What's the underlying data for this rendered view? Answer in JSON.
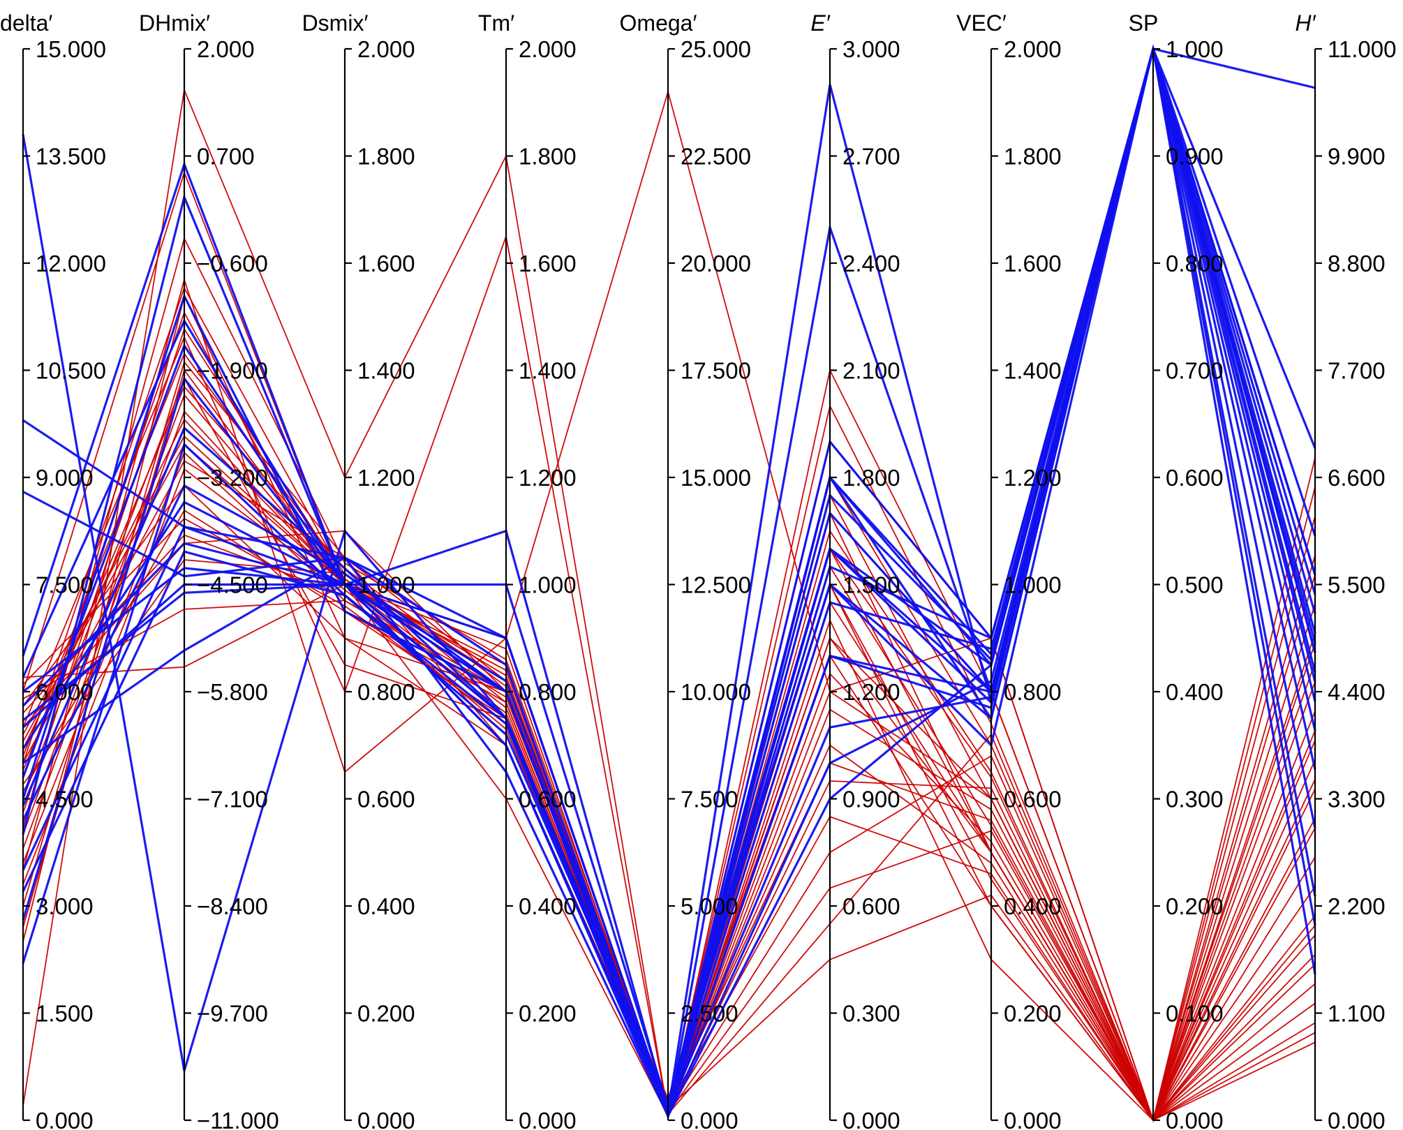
{
  "chart_data": {
    "type": "parallel-coordinates",
    "colors": {
      "red": "#cc0000",
      "blue": "#1010ee"
    },
    "axes": [
      {
        "label": "delta′",
        "italic": false,
        "min": 0,
        "max": 15,
        "ticks": [
          "15.000",
          "13.500",
          "12.000",
          "10.500",
          "9.000",
          "7.500",
          "6.000",
          "4.500",
          "3.000",
          "1.500",
          "0.000"
        ]
      },
      {
        "label": "DHmix′",
        "italic": false,
        "min": -11,
        "max": 2,
        "ticks": [
          "2.000",
          "0.700",
          "−0.600",
          "−1.900",
          "−3.200",
          "−4.500",
          "−5.800",
          "−7.100",
          "−8.400",
          "−9.700",
          "−11.000"
        ]
      },
      {
        "label": "Dsmix′",
        "italic": false,
        "min": 0,
        "max": 2,
        "ticks": [
          "2.000",
          "1.800",
          "1.600",
          "1.400",
          "1.200",
          "1.000",
          "0.800",
          "0.600",
          "0.400",
          "0.200",
          "0.000"
        ]
      },
      {
        "label": "Tm′",
        "italic": false,
        "min": 0,
        "max": 2,
        "ticks": [
          "2.000",
          "1.800",
          "1.600",
          "1.400",
          "1.200",
          "1.000",
          "0.800",
          "0.600",
          "0.400",
          "0.200",
          "0.000"
        ]
      },
      {
        "label": "Omega′",
        "italic": false,
        "min": 0,
        "max": 25,
        "ticks": [
          "25.000",
          "22.500",
          "20.000",
          "17.500",
          "15.000",
          "12.500",
          "10.000",
          "7.500",
          "5.000",
          "2.500",
          "0.000"
        ]
      },
      {
        "label": "E′",
        "italic": true,
        "min": 0,
        "max": 3,
        "ticks": [
          "3.000",
          "2.700",
          "2.400",
          "2.100",
          "1.800",
          "1.500",
          "1.200",
          "0.900",
          "0.600",
          "0.300",
          "0.000"
        ]
      },
      {
        "label": "VEC′",
        "italic": false,
        "min": 0,
        "max": 2,
        "ticks": [
          "2.000",
          "1.800",
          "1.600",
          "1.400",
          "1.200",
          "1.000",
          "0.800",
          "0.600",
          "0.400",
          "0.200",
          "0.000"
        ]
      },
      {
        "label": "SP",
        "italic": false,
        "min": 0,
        "max": 1,
        "ticks": [
          "1.000",
          "0.900",
          "0.800",
          "0.700",
          "0.600",
          "0.500",
          "0.400",
          "0.300",
          "0.200",
          "0.100",
          "0.000"
        ]
      },
      {
        "label": "H′",
        "italic": true,
        "min": 0,
        "max": 11,
        "ticks": [
          "11.000",
          "9.900",
          "8.800",
          "7.700",
          "6.600",
          "5.500",
          "4.400",
          "3.300",
          "2.200",
          "1.100",
          "0.000"
        ]
      }
    ],
    "series": [
      {
        "color": "blue",
        "lines": [
          [
            13.8,
            -10.4,
            1.1,
            0.75,
            0.1,
            1.6,
            0.85,
            1.0,
            10.6
          ],
          [
            9.8,
            -3.8,
            1.0,
            0.8,
            0.2,
            1.9,
            0.9,
            1.0,
            6.9
          ],
          [
            8.8,
            -4.4,
            1.05,
            0.85,
            0.1,
            2.5,
            0.8,
            1.0,
            5.6
          ],
          [
            6.0,
            -4.3,
            1.0,
            0.7,
            0.2,
            2.9,
            0.78,
            1.0,
            4.8
          ],
          [
            5.5,
            -4.5,
            1.0,
            0.75,
            0.3,
            1.8,
            0.85,
            1.0,
            5.2
          ],
          [
            5.0,
            -5.3,
            1.05,
            0.65,
            0.1,
            1.8,
            0.87,
            1.0,
            4.6
          ],
          [
            4.5,
            -1.0,
            0.95,
            0.8,
            0.1,
            1.8,
            0.75,
            1.0,
            4.3
          ],
          [
            4.8,
            -1.6,
            1.0,
            0.75,
            0.4,
            1.6,
            0.78,
            1.0,
            4.5
          ],
          [
            3.5,
            -3.8,
            1.05,
            0.9,
            0.2,
            1.55,
            0.9,
            1.0,
            3.0
          ],
          [
            2.8,
            -2.0,
            1.0,
            0.8,
            0.1,
            1.3,
            0.8,
            1.0,
            4.8
          ],
          [
            6.5,
            0.6,
            1.0,
            0.8,
            0.3,
            1.5,
            0.75,
            1.0,
            5.0
          ],
          [
            4.0,
            0.2,
            1.0,
            0.7,
            0.1,
            1.0,
            0.82,
            1.0,
            1.5
          ],
          [
            6.2,
            -1.3,
            1.0,
            1.1,
            0.2,
            1.1,
            0.79,
            1.0,
            5.6
          ],
          [
            5.2,
            -3.5,
            1.0,
            1.0,
            0.3,
            1.6,
            0.8,
            1.0,
            5.4
          ],
          [
            4.4,
            -2.6,
            1.03,
            0.75,
            0.1,
            0.9,
            0.85,
            1.0,
            2.3
          ],
          [
            3.2,
            -4.1,
            0.98,
            0.72,
            0.4,
            1.5,
            0.7,
            1.0,
            2.0
          ],
          [
            5.8,
            -4.0,
            1.0,
            0.9,
            0.2,
            1.7,
            0.8,
            1.0,
            6.0
          ],
          [
            4.2,
            -3.3,
            1.02,
            0.8,
            0.1,
            1.3,
            0.77,
            1.0,
            4.0
          ],
          [
            5.6,
            -4.6,
            1.0,
            0.82,
            0.25,
            1.75,
            0.86,
            1.0,
            4.9
          ],
          [
            2.2,
            -2.8,
            0.98,
            0.74,
            0.15,
            1.45,
            0.88,
            1.0,
            3.6
          ]
        ]
      },
      {
        "color": "red",
        "lines": [
          [
            0.2,
            1.5,
            1.2,
            1.8,
            0.15,
            1.9,
            0.9,
            0.0,
            3.5
          ],
          [
            5.5,
            -1.5,
            0.8,
            1.65,
            0.15,
            1.7,
            0.8,
            0.0,
            4.0
          ],
          [
            3.5,
            -0.8,
            0.65,
            0.9,
            0.2,
            1.6,
            0.5,
            0.0,
            5.0
          ],
          [
            2.5,
            -1.0,
            0.9,
            0.8,
            0.1,
            1.5,
            0.4,
            0.0,
            3.1
          ],
          [
            4.5,
            -2.0,
            0.85,
            0.75,
            0.1,
            1.4,
            0.3,
            0.0,
            2.0
          ],
          [
            5.0,
            -3.0,
            1.05,
            0.7,
            0.3,
            1.3,
            0.4,
            0.0,
            1.6
          ],
          [
            5.2,
            -2.5,
            1.0,
            0.6,
            0.1,
            1.2,
            0.6,
            0.0,
            6.8
          ],
          [
            5.5,
            -4.0,
            1.1,
            0.8,
            0.2,
            1.7,
            0.5,
            0.0,
            1.0
          ],
          [
            4.8,
            -1.2,
            0.95,
            0.75,
            0.1,
            2.1,
            0.8,
            0.0,
            6.2
          ],
          [
            6.0,
            0.5,
            1.0,
            0.9,
            24.0,
            1.2,
            0.9,
            0.0,
            5.8
          ],
          [
            6.2,
            -5.5,
            1.0,
            0.75,
            0.5,
            1.5,
            0.45,
            0.0,
            4.9
          ],
          [
            5.8,
            -3.3,
            0.9,
            0.7,
            0.2,
            1.45,
            0.5,
            0.0,
            4.5
          ],
          [
            4.0,
            -2.2,
            1.0,
            0.8,
            0.3,
            1.8,
            0.7,
            0.0,
            4.2
          ],
          [
            3.0,
            -1.8,
            1.05,
            0.82,
            0.2,
            1.65,
            0.65,
            0.0,
            3.9
          ],
          [
            5.3,
            -2.8,
            1.0,
            0.85,
            0.2,
            1.55,
            0.55,
            0.0,
            3.4
          ],
          [
            4.6,
            -3.6,
            0.95,
            0.78,
            0.15,
            1.35,
            0.6,
            0.0,
            3.0
          ],
          [
            5.1,
            -1.7,
            1.02,
            0.8,
            0.1,
            1.25,
            0.52,
            0.0,
            2.7
          ],
          [
            3.8,
            -2.4,
            1.0,
            0.77,
            0.12,
            1.15,
            0.58,
            0.0,
            2.4
          ],
          [
            5.7,
            -3.9,
            0.98,
            0.73,
            0.25,
            1.05,
            0.48,
            0.0,
            2.1
          ],
          [
            4.3,
            -1.4,
            1.01,
            0.83,
            0.18,
            0.95,
            0.62,
            0.0,
            1.9
          ],
          [
            5.9,
            -4.8,
            0.97,
            0.79,
            0.3,
            0.85,
            0.46,
            0.0,
            1.7
          ],
          [
            4.9,
            -2.1,
            1.03,
            0.81,
            0.22,
            0.75,
            0.68,
            0.0,
            1.4
          ],
          [
            3.3,
            -3.1,
            0.99,
            0.76,
            0.16,
            0.65,
            0.54,
            0.0,
            1.2
          ],
          [
            5.4,
            -2.7,
            1.0,
            0.84,
            0.14,
            0.55,
            0.72,
            0.0,
            0.9
          ],
          [
            4.1,
            -0.3,
            1.04,
            0.86,
            0.28,
            0.45,
            0.42,
            0.0,
            0.8
          ],
          [
            6.1,
            -3.7,
            0.96,
            0.74,
            0.35,
            1.0,
            0.56,
            0.0,
            5.3
          ],
          [
            2.7,
            -1.9,
            1.0,
            0.88,
            0.1,
            1.6,
            0.64,
            0.0,
            4.7
          ],
          [
            4.7,
            -4.2,
            1.02,
            0.78,
            0.2,
            1.35,
            0.5,
            0.0,
            3.7
          ],
          [
            3.6,
            -2.9,
            0.97,
            0.8,
            0.12,
            1.75,
            0.6,
            0.0,
            6.5
          ],
          [
            5.0,
            -0.9,
            1.01,
            0.82,
            0.18,
            2.0,
            0.74,
            0.0,
            5.6
          ]
        ]
      }
    ]
  }
}
